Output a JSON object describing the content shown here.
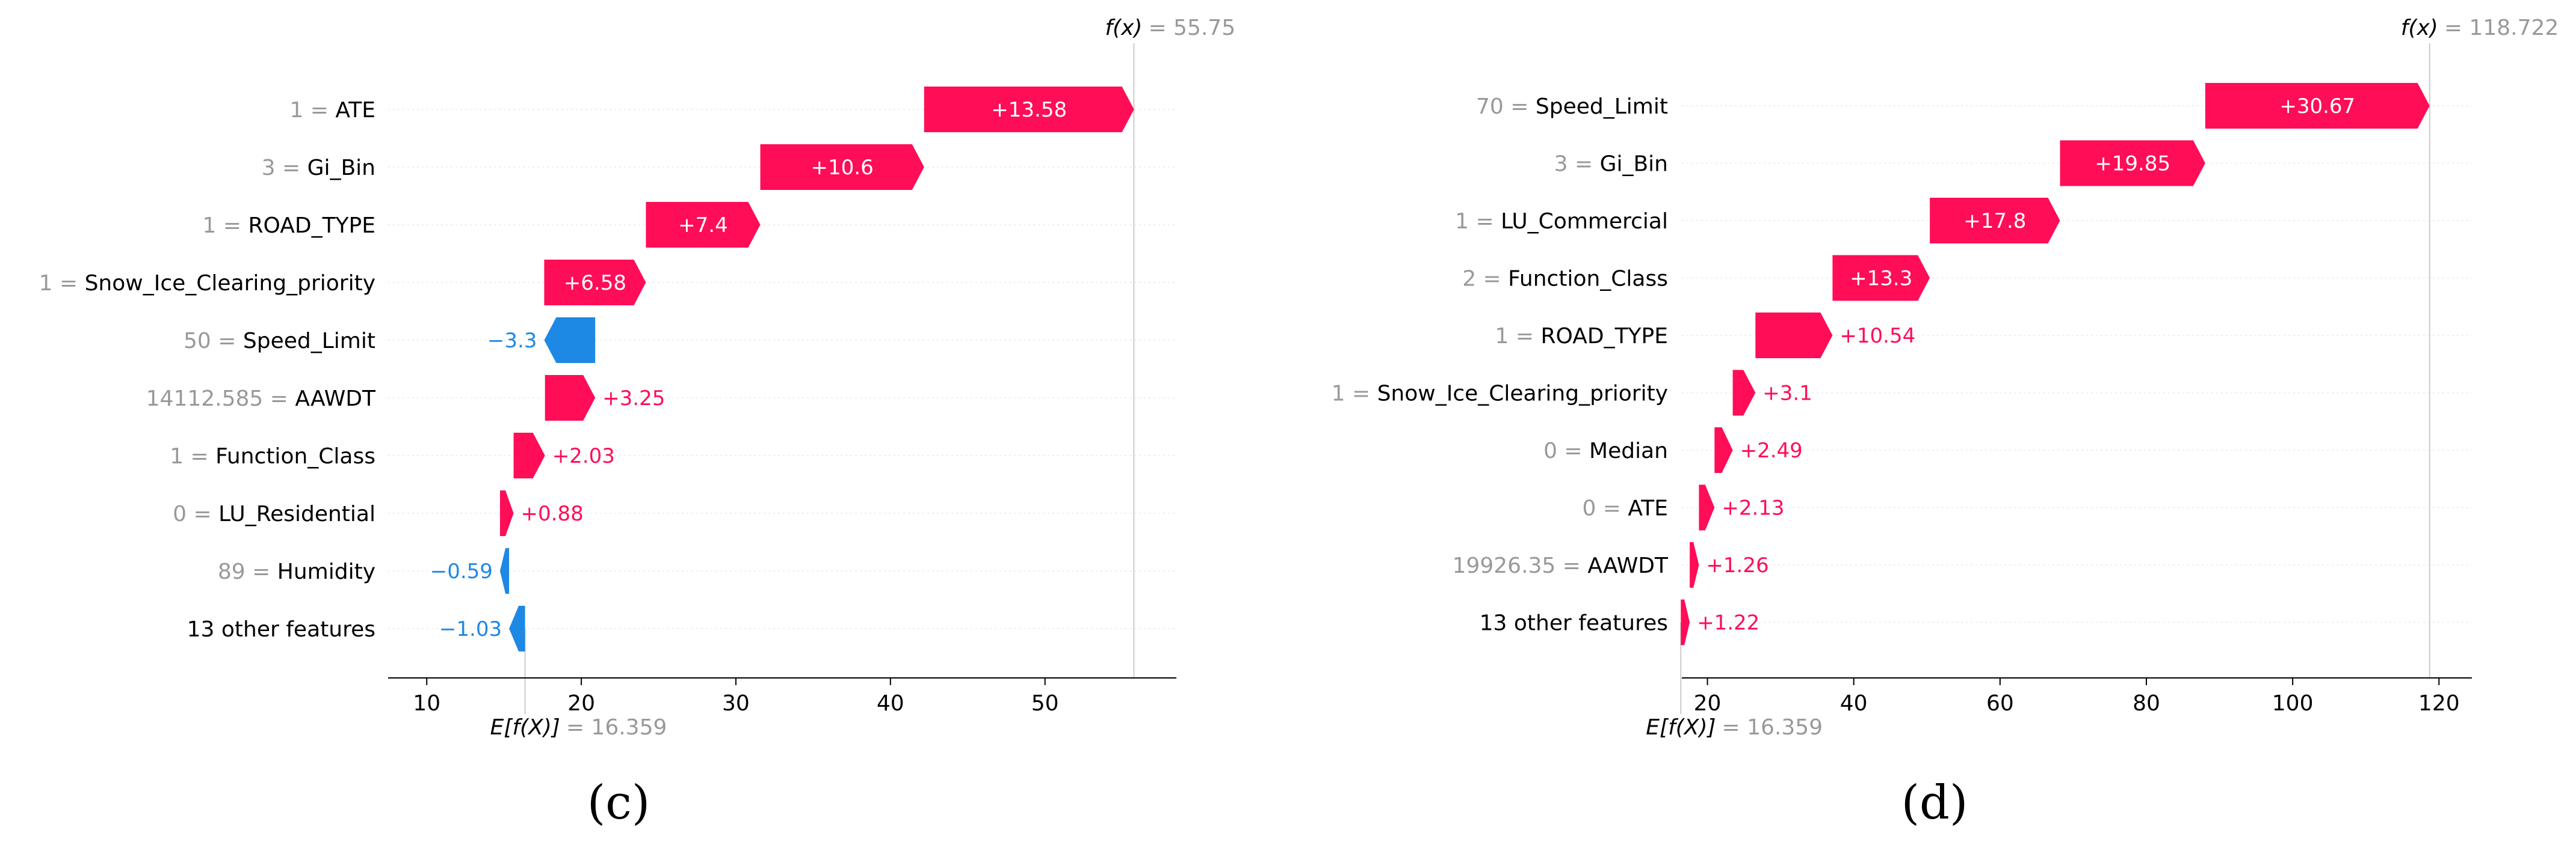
{
  "colors": {
    "positive": "#ff0d57",
    "negative": "#1e88e5",
    "grey": "#999999",
    "text": "#000000"
  },
  "chart_data": [
    {
      "type": "waterfall",
      "panel_label": "(c)",
      "fx_label": "f(x)",
      "fx_value": "= 55.75",
      "fx": 55.75,
      "base_label": "E[f(X)]",
      "base_value_text": "= 16.359",
      "base_value": 16.359,
      "xlim": [
        7.5,
        58.5
      ],
      "xticks": [
        "10",
        "20",
        "30",
        "40",
        "50"
      ],
      "rows": [
        {
          "value": "1",
          "feature": "ATE",
          "shap": 13.58,
          "label": "+13.58"
        },
        {
          "value": "3",
          "feature": "Gi_Bin",
          "shap": 10.6,
          "label": "+10.6"
        },
        {
          "value": "1",
          "feature": "ROAD_TYPE",
          "shap": 7.4,
          "label": "+7.4"
        },
        {
          "value": "1",
          "feature": "Snow_Ice_Clearing_priority",
          "shap": 6.58,
          "label": "+6.58"
        },
        {
          "value": "50",
          "feature": "Speed_Limit",
          "shap": -3.3,
          "label": "−3.3"
        },
        {
          "value": "14112.585",
          "feature": "AAWDT",
          "shap": 3.25,
          "label": "+3.25"
        },
        {
          "value": "1",
          "feature": "Function_Class",
          "shap": 2.03,
          "label": "+2.03"
        },
        {
          "value": "0",
          "feature": "LU_Residential",
          "shap": 0.88,
          "label": "+0.88"
        },
        {
          "value": "89",
          "feature": "Humidity",
          "shap": -0.59,
          "label": "−0.59"
        },
        {
          "value": "",
          "feature": "13 other features",
          "shap": -1.03,
          "label": "−1.03"
        }
      ]
    },
    {
      "type": "waterfall",
      "panel_label": "(d)",
      "fx_label": "f(x)",
      "fx_value": "= 118.722",
      "fx": 118.722,
      "base_label": "E[f(X)]",
      "base_value_text": "= 16.359",
      "base_value": 16.359,
      "xlim": [
        16.5,
        124.5
      ],
      "xticks": [
        "20",
        "40",
        "60",
        "80",
        "100",
        "120"
      ],
      "rows": [
        {
          "value": "70",
          "feature": "Speed_Limit",
          "shap": 30.67,
          "label": "+30.67"
        },
        {
          "value": "3",
          "feature": "Gi_Bin",
          "shap": 19.85,
          "label": "+19.85"
        },
        {
          "value": "1",
          "feature": "LU_Commercial",
          "shap": 17.8,
          "label": "+17.8"
        },
        {
          "value": "2",
          "feature": "Function_Class",
          "shap": 13.3,
          "label": "+13.3"
        },
        {
          "value": "1",
          "feature": "ROAD_TYPE",
          "shap": 10.54,
          "label": "+10.54"
        },
        {
          "value": "1",
          "feature": "Snow_Ice_Clearing_priority",
          "shap": 3.1,
          "label": "+3.1"
        },
        {
          "value": "0",
          "feature": "Median",
          "shap": 2.49,
          "label": "+2.49"
        },
        {
          "value": "0",
          "feature": "ATE",
          "shap": 2.13,
          "label": "+2.13"
        },
        {
          "value": "19926.35",
          "feature": "AAWDT",
          "shap": 1.26,
          "label": "+1.26"
        },
        {
          "value": "",
          "feature": "13 other features",
          "shap": 1.22,
          "label": "+1.22"
        }
      ]
    }
  ]
}
